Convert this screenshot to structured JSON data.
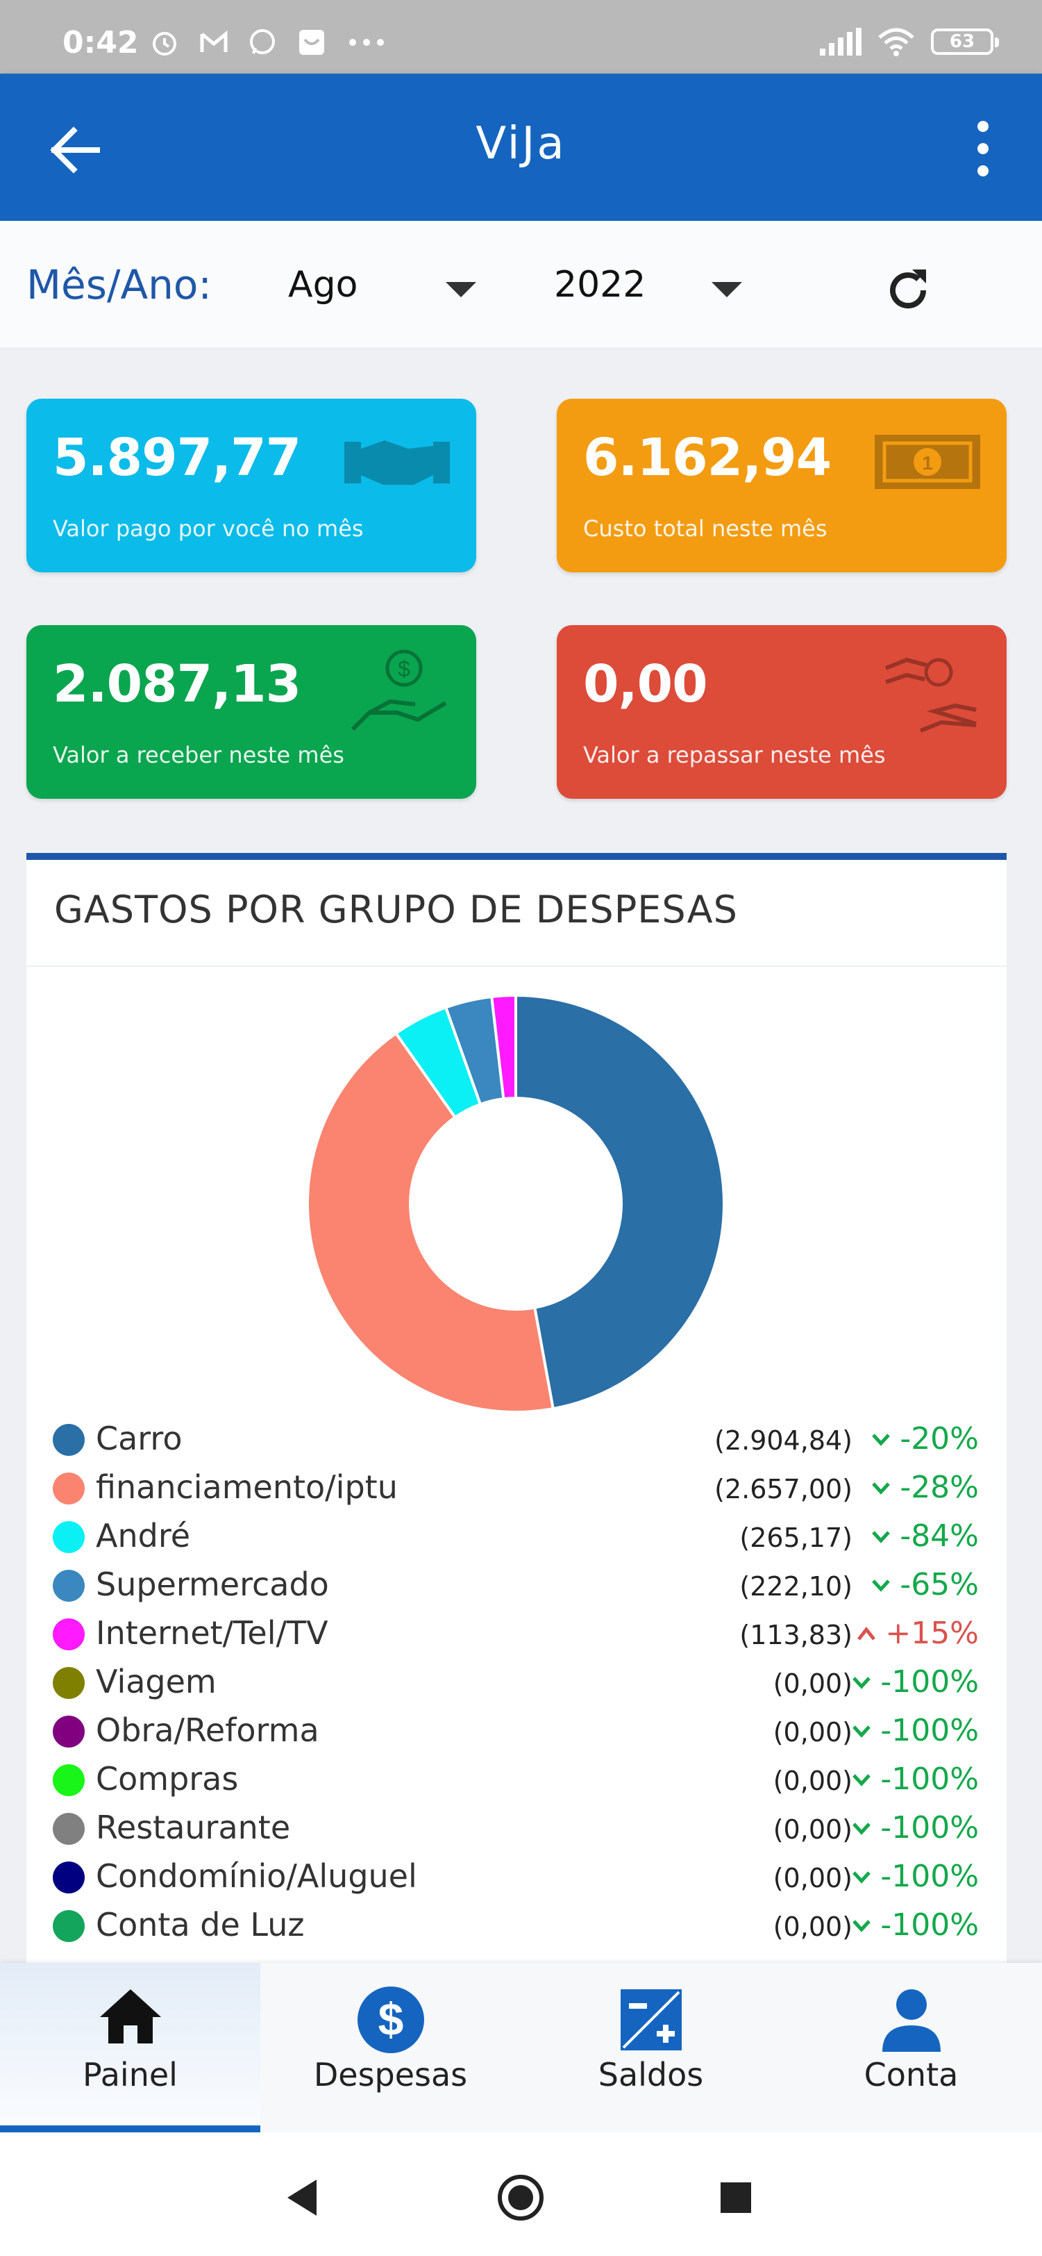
{
  "status_bar": {
    "time": "0:42",
    "notification_icons": [
      "alarm-icon",
      "gmail-icon",
      "whatsapp-icon",
      "app-icon",
      "more-icon"
    ],
    "battery": "63"
  },
  "app_bar": {
    "title": "ViJa"
  },
  "selector": {
    "label": "Mês/Ano:",
    "month": "Ago",
    "year": "2022"
  },
  "cards": [
    {
      "value": "5.897,77",
      "description": "Valor pago por você no mês",
      "color": "#0bbbe9",
      "icon": "handshake-icon"
    },
    {
      "value": "6.162,94",
      "description": "Custo total neste mês",
      "color": "#f39c12",
      "icon": "money-bill-icon"
    },
    {
      "value": "2.087,13",
      "description": "Valor a receber neste mês",
      "color": "#0aa54f",
      "icon": "hand-holding-dollar-icon"
    },
    {
      "value": "0,00",
      "description": "Valor a repassar neste mês",
      "color": "#dd4b39",
      "icon": "hands-transfer-icon"
    }
  ],
  "chart_data": {
    "type": "pie",
    "title": "GASTOS POR GRUPO DE DESPESAS",
    "categories": [
      "Carro",
      "financiamento/iptu",
      "André",
      "Supermercado",
      "Internet/Tel/TV",
      "Viagem",
      "Obra/Reforma",
      "Compras",
      "Restaurante",
      "Condomínio/Aluguel",
      "Conta de Luz"
    ],
    "values": [
      2904.84,
      2657.0,
      265.17,
      222.1,
      113.83,
      0,
      0,
      0,
      0,
      0,
      0
    ],
    "value_labels": [
      "(2.904,84)",
      "(2.657,00)",
      "(265,17)",
      "(222,10)",
      "(113,83)",
      "(0,00)",
      "(0,00)",
      "(0,00)",
      "(0,00)",
      "(0,00)",
      "(0,00)"
    ],
    "changes": [
      "-20%",
      "-28%",
      "-84%",
      "-65%",
      "+15%",
      "-100%",
      "-100%",
      "-100%",
      "-100%",
      "-100%",
      "-100%"
    ],
    "change_direction": [
      "down",
      "down",
      "down",
      "down",
      "up",
      "down",
      "down",
      "down",
      "down",
      "down",
      "down"
    ],
    "colors": [
      "#2a6fa6",
      "#fa8470",
      "#0af0f4",
      "#3a88bf",
      "#ff1aff",
      "#808000",
      "#800080",
      "#19f519",
      "#808080",
      "#000080",
      "#13a55c"
    ],
    "donut": true,
    "legend_position": "bottom"
  },
  "bottom_nav": {
    "items": [
      {
        "label": "Painel",
        "icon": "home-icon",
        "active": true
      },
      {
        "label": "Despesas",
        "icon": "dollar-circle-icon",
        "active": false
      },
      {
        "label": "Saldos",
        "icon": "plus-minus-icon",
        "active": false
      },
      {
        "label": "Conta",
        "icon": "user-icon",
        "active": false
      }
    ]
  },
  "system_nav": [
    "back-icon",
    "home-icon",
    "recents-icon"
  ]
}
